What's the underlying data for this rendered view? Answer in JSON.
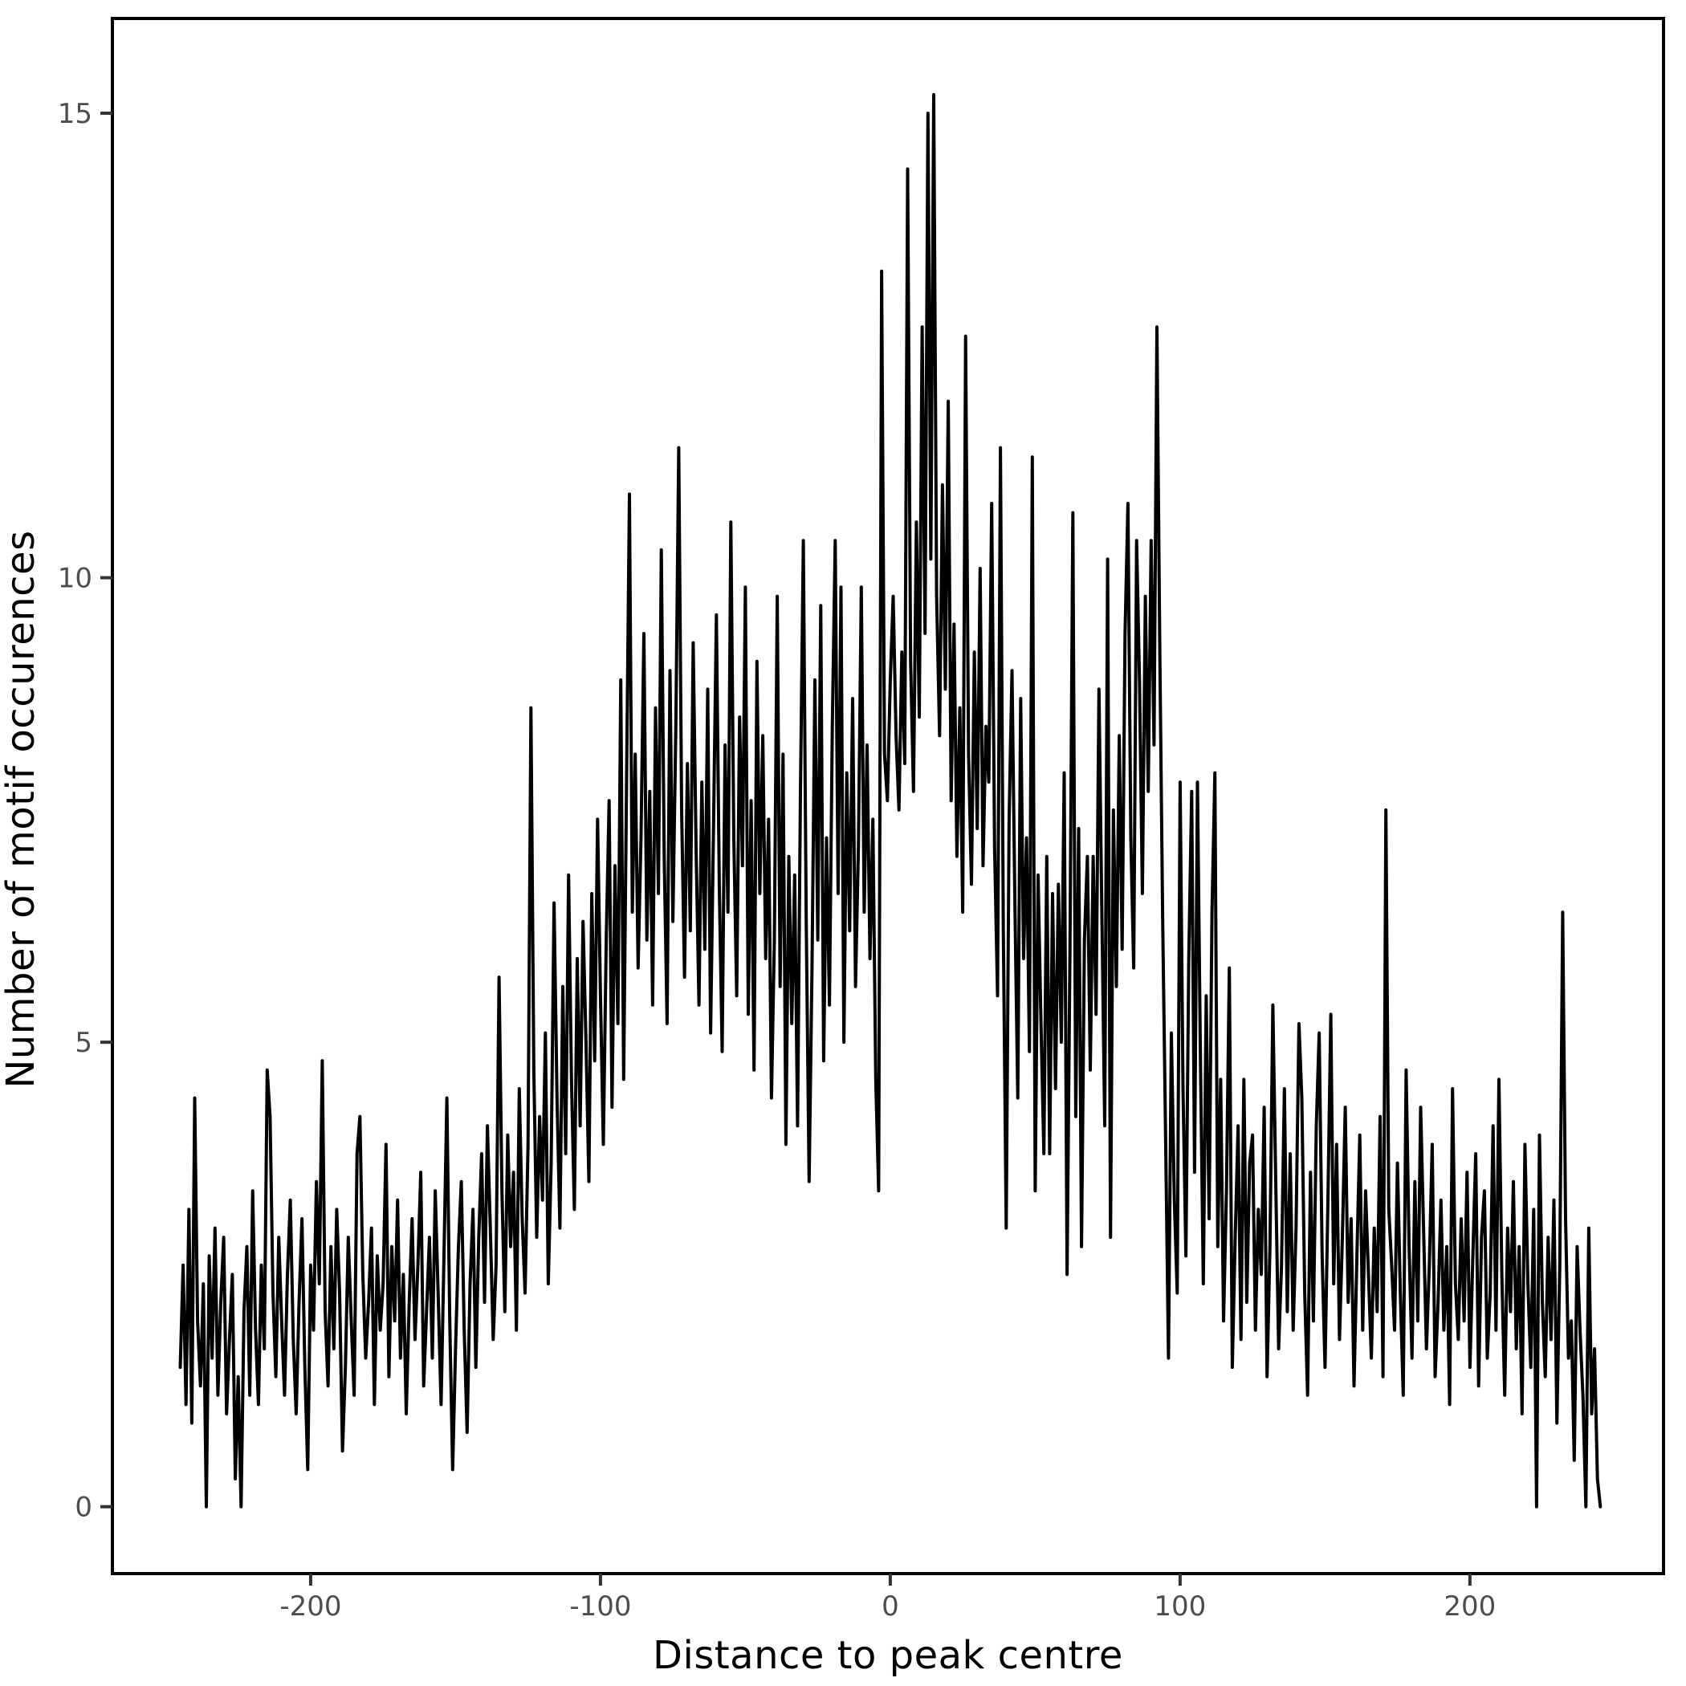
{
  "figure": {
    "background": "#ffffff",
    "panel_border_color": "#000000",
    "line_color": "#000000",
    "tick_color": "#333333",
    "tick_label_color": "#4d4d4d",
    "axis_title_color": "#000000",
    "tick_label_font_px": 34,
    "axis_title_font_px": 48
  },
  "chart_data": {
    "type": "line",
    "title": "",
    "xlabel": "Distance to peak centre",
    "ylabel": "Number of motif occurences",
    "legend": null,
    "grid": false,
    "x_start": -245,
    "x_step": 1,
    "x_ticks": [
      -200,
      -100,
      0,
      100,
      200
    ],
    "y_ticks": [
      0,
      5,
      10,
      15
    ],
    "xlim": [
      -268.4,
      266.8
    ],
    "ylim": [
      -0.72,
      16.02
    ],
    "values": [
      1.5,
      2.6,
      1.1,
      3.2,
      0.9,
      4.4,
      2.0,
      1.3,
      2.4,
      0.0,
      2.7,
      1.6,
      3.0,
      1.2,
      2.2,
      2.9,
      1.0,
      1.8,
      2.5,
      0.3,
      1.4,
      0.0,
      2.1,
      2.8,
      1.2,
      3.4,
      1.9,
      1.1,
      2.6,
      1.7,
      4.7,
      4.2,
      2.3,
      1.4,
      2.9,
      2.0,
      1.2,
      2.5,
      3.3,
      1.8,
      1.0,
      2.2,
      3.1,
      1.5,
      0.4,
      2.6,
      1.9,
      3.5,
      2.4,
      4.8,
      2.1,
      1.3,
      2.8,
      1.7,
      3.2,
      2.3,
      0.6,
      1.5,
      2.9,
      2.0,
      1.2,
      3.8,
      4.2,
      2.5,
      1.6,
      2.2,
      3.0,
      1.1,
      2.7,
      1.9,
      2.4,
      3.9,
      1.4,
      2.8,
      2.0,
      3.3,
      1.6,
      2.5,
      1.0,
      2.2,
      3.1,
      1.8,
      2.6,
      3.6,
      1.3,
      2.1,
      2.9,
      1.6,
      3.4,
      2.3,
      1.1,
      2.7,
      4.4,
      2.0,
      0.4,
      1.7,
      2.8,
      3.5,
      1.9,
      0.8,
      2.4,
      3.2,
      1.5,
      2.9,
      3.8,
      2.2,
      4.1,
      3.0,
      1.8,
      2.6,
      5.7,
      3.4,
      2.1,
      4.0,
      2.8,
      3.6,
      1.9,
      4.5,
      3.1,
      2.3,
      3.9,
      8.6,
      4.7,
      2.9,
      4.2,
      3.3,
      5.1,
      2.4,
      3.7,
      6.5,
      4.4,
      3.0,
      5.6,
      3.8,
      6.8,
      4.6,
      3.2,
      5.9,
      4.1,
      6.3,
      5.0,
      3.5,
      6.6,
      4.8,
      7.4,
      5.5,
      3.9,
      6.1,
      7.6,
      4.3,
      6.9,
      5.2,
      8.9,
      4.6,
      7.8,
      10.9,
      6.4,
      8.1,
      5.8,
      7.2,
      9.4,
      6.1,
      7.7,
      5.4,
      8.6,
      6.6,
      10.3,
      7.0,
      5.2,
      9.0,
      6.3,
      8.4,
      11.4,
      7.5,
      5.7,
      8.0,
      6.2,
      9.3,
      7.1,
      5.4,
      7.8,
      6.0,
      8.8,
      5.1,
      7.3,
      9.6,
      6.7,
      4.9,
      8.2,
      6.4,
      10.6,
      7.2,
      5.5,
      8.5,
      6.9,
      9.9,
      5.3,
      7.6,
      4.7,
      9.1,
      6.6,
      8.3,
      5.9,
      7.4,
      4.4,
      6.1,
      9.8,
      5.6,
      8.1,
      3.9,
      7.0,
      5.2,
      6.8,
      4.1,
      7.7,
      10.4,
      6.3,
      3.5,
      5.8,
      8.9,
      6.1,
      9.7,
      4.8,
      7.2,
      5.4,
      8.4,
      10.4,
      6.6,
      9.9,
      5.0,
      7.9,
      6.2,
      8.7,
      5.6,
      7.1,
      9.9,
      6.4,
      8.2,
      5.9,
      7.4,
      4.6,
      3.4,
      13.3,
      8.1,
      7.6,
      8.9,
      9.8,
      8.3,
      7.5,
      9.2,
      8.0,
      14.4,
      9.1,
      7.7,
      10.6,
      8.5,
      12.7,
      9.4,
      15.0,
      10.2,
      15.2,
      9.8,
      8.3,
      11.0,
      8.8,
      11.9,
      7.6,
      9.5,
      7.0,
      8.6,
      6.4,
      12.6,
      8.1,
      6.7,
      9.2,
      7.3,
      10.1,
      6.9,
      8.4,
      7.8,
      10.8,
      7.1,
      5.5,
      11.4,
      6.2,
      3.0,
      7.4,
      9.0,
      6.5,
      4.4,
      8.7,
      5.9,
      7.2,
      4.9,
      11.3,
      3.4,
      6.8,
      5.2,
      3.8,
      7.0,
      3.8,
      6.6,
      4.5,
      6.7,
      5.0,
      7.9,
      2.5,
      6.0,
      10.7,
      4.2,
      7.3,
      2.8,
      6.1,
      7.0,
      4.7,
      7.0,
      5.3,
      8.8,
      6.4,
      4.1,
      10.2,
      2.9,
      7.5,
      5.6,
      8.3,
      6.0,
      9.4,
      10.8,
      7.2,
      5.8,
      10.4,
      8.9,
      6.6,
      9.8,
      7.7,
      10.4,
      8.2,
      12.7,
      9.2,
      6.3,
      4.0,
      1.6,
      5.1,
      3.3,
      2.3,
      7.8,
      4.5,
      2.7,
      5.9,
      7.7,
      3.6,
      7.8,
      4.9,
      2.4,
      5.5,
      3.1,
      6.4,
      7.9,
      2.8,
      4.6,
      2.0,
      3.4,
      5.8,
      1.5,
      2.9,
      4.1,
      1.8,
      4.6,
      2.2,
      3.7,
      4.0,
      1.9,
      3.2,
      2.5,
      4.3,
      1.4,
      2.8,
      5.4,
      3.5,
      1.7,
      2.6,
      4.5,
      2.1,
      3.8,
      1.9,
      3.0,
      5.2,
      4.4,
      2.3,
      1.2,
      3.6,
      2.0,
      4.1,
      5.1,
      2.7,
      1.5,
      3.3,
      5.3,
      2.4,
      3.9,
      1.8,
      2.9,
      4.3,
      2.2,
      3.1,
      1.3,
      2.7,
      4.0,
      1.9,
      3.4,
      2.5,
      1.6,
      3.0,
      2.1,
      4.2,
      1.4,
      7.5,
      3.2,
      2.6,
      1.9,
      3.7,
      2.3,
      1.2,
      4.7,
      2.8,
      1.6,
      3.5,
      2.0,
      4.3,
      3.0,
      1.7,
      2.6,
      3.9,
      1.4,
      2.2,
      3.3,
      1.9,
      2.8,
      1.1,
      4.5,
      2.4,
      1.8,
      3.1,
      2.0,
      3.6,
      1.5,
      2.7,
      3.8,
      1.3,
      2.9,
      3.4,
      1.6,
      2.3,
      4.1,
      1.9,
      4.6,
      2.5,
      1.2,
      3.0,
      2.1,
      3.5,
      1.7,
      2.8,
      1.0,
      3.9,
      2.4,
      1.5,
      3.2,
      0.0,
      4.0,
      2.2,
      1.4,
      2.9,
      1.8,
      3.3,
      0.9,
      2.6,
      6.4,
      3.1,
      1.6,
      2.0,
      0.5,
      2.8,
      1.9,
      1.2,
      0.0,
      3.0,
      1.0,
      1.7,
      0.3,
      0.0
    ]
  }
}
